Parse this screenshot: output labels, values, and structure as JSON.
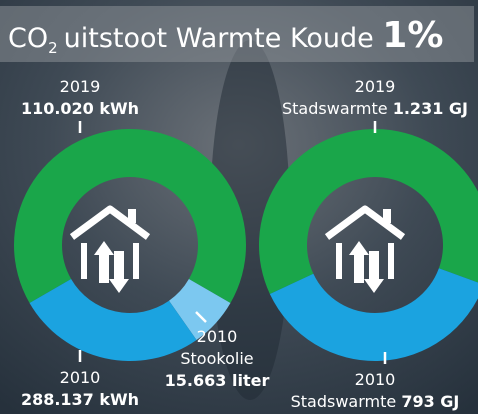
{
  "header": {
    "title_prefix": "CO",
    "title_subscript": "2",
    "title_middle": "uitstoot",
    "title_emphasis": "Warmte Koude",
    "title_value": "1%"
  },
  "panels": [
    {
      "top": {
        "year": "2019",
        "amount": "110.020 kWh"
      },
      "bottom": {
        "year": "2010",
        "amount": "288.137 kWh"
      },
      "extra": {
        "year": "2010",
        "label": "Stookolie",
        "amount": "15.663 liter"
      }
    },
    {
      "top": {
        "year": "2019",
        "label": "Stadswarmte",
        "amount": "1.231 GJ"
      },
      "bottom": {
        "year": "2010",
        "label": "Stadswarmte",
        "amount": "793 GJ"
      }
    }
  ]
}
